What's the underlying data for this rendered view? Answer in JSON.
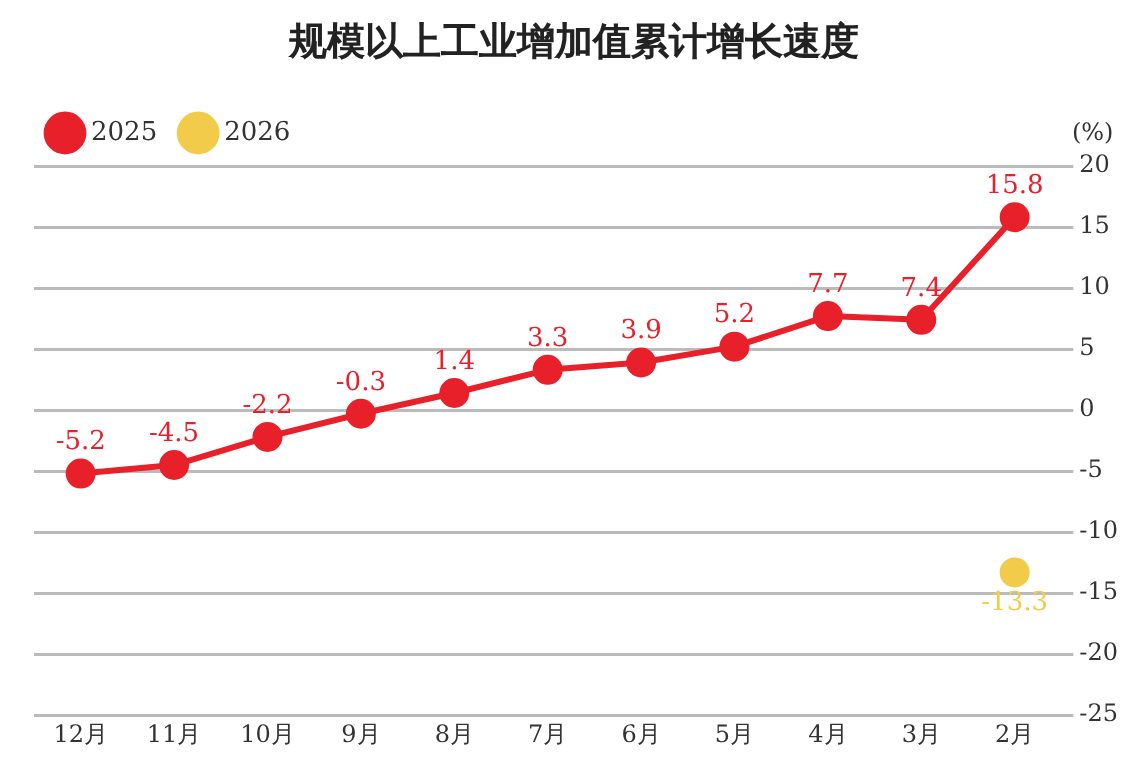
{
  "chart_data": {
    "type": "line",
    "title": "规模以上工业增加值累计增长速度",
    "annotations": [
      "(%)"
    ],
    "categories": [
      "12月",
      "11月",
      "10月",
      "9月",
      "8月",
      "7月",
      "6月",
      "5月",
      "4月",
      "3月",
      "2月"
    ],
    "series": [
      {
        "name": "2025",
        "color": "#e8202a",
        "values": [
          -5.2,
          -4.5,
          -2.2,
          -0.3,
          1.4,
          3.3,
          3.9,
          5.2,
          7.7,
          7.4,
          15.8
        ]
      },
      {
        "name": "2026",
        "color": "#f2cb4a",
        "values": [
          null,
          null,
          null,
          null,
          null,
          null,
          null,
          null,
          null,
          null,
          -13.3
        ]
      }
    ],
    "ylim": [
      -25,
      20
    ],
    "yticks": [
      -25,
      -20,
      -15,
      -10,
      -5,
      0,
      5,
      10,
      15,
      20
    ],
    "grid": "y",
    "legend": "top left",
    "marker": "circle",
    "line_style": "solid",
    "data_labels": true
  }
}
